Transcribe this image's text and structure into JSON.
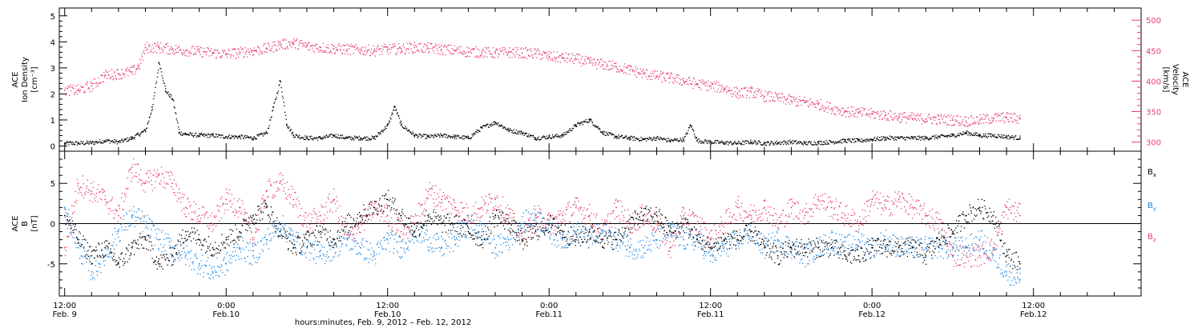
{
  "chart_data": [
    {
      "type": "scatter",
      "panel": "plasma",
      "ylabel": [
        "ACE",
        "Ion Density",
        "[cm⁻³]"
      ],
      "ylabel_right": [
        "ACE",
        "Velocity",
        "[km/s]"
      ],
      "ylim": [
        -0.2,
        5.3
      ],
      "ylim_right": [
        285,
        520
      ],
      "yticks": [
        0,
        1,
        2,
        3,
        4,
        5
      ],
      "yticks_right": [
        300,
        350,
        400,
        450,
        500
      ],
      "grid": false,
      "series": [
        {
          "axis": "left",
          "color": "#000000",
          "x": [
            0,
            1,
            2,
            3,
            4,
            5,
            6,
            6.5,
            7,
            7.5,
            8,
            8.5,
            9,
            10,
            11,
            12,
            13,
            14,
            15,
            15.5,
            16,
            16.5,
            17,
            18,
            19,
            20,
            21,
            22,
            23,
            24,
            24.5,
            25,
            26,
            27,
            28,
            29,
            30,
            31,
            32,
            33,
            34,
            35,
            36,
            37,
            38,
            39,
            40,
            41,
            42,
            43,
            44,
            45,
            46,
            46.5,
            47,
            48,
            49,
            50,
            51,
            52,
            53,
            54,
            55,
            56,
            57,
            58,
            59,
            60,
            61,
            62,
            63,
            64,
            65,
            66,
            67,
            68,
            69,
            70,
            71
          ],
          "values": [
            0.1,
            0.1,
            0.12,
            0.2,
            0.15,
            0.3,
            0.6,
            1.5,
            3.2,
            2.1,
            1.8,
            0.5,
            0.45,
            0.4,
            0.4,
            0.35,
            0.35,
            0.3,
            0.5,
            1.5,
            2.5,
            0.8,
            0.4,
            0.3,
            0.3,
            0.4,
            0.3,
            0.3,
            0.3,
            0.8,
            1.5,
            0.8,
            0.4,
            0.35,
            0.4,
            0.35,
            0.3,
            0.7,
            0.9,
            0.6,
            0.5,
            0.3,
            0.35,
            0.4,
            0.8,
            1.0,
            0.5,
            0.35,
            0.3,
            0.25,
            0.3,
            0.2,
            0.25,
            0.8,
            0.2,
            0.15,
            0.12,
            0.1,
            0.15,
            0.1,
            0.12,
            0.15,
            0.1,
            0.12,
            0.15,
            0.2,
            0.2,
            0.25,
            0.3,
            0.3,
            0.3,
            0.3,
            0.35,
            0.4,
            0.5,
            0.4,
            0.4,
            0.35,
            0.3
          ]
        },
        {
          "axis": "right",
          "color": "#e83e6c",
          "x": [
            0,
            1,
            2,
            3,
            4,
            5,
            5.5,
            6,
            7,
            8,
            9,
            10,
            11,
            12,
            13,
            14,
            15,
            16,
            17,
            18,
            19,
            20,
            21,
            22,
            23,
            24,
            25,
            26,
            27,
            28,
            29,
            30,
            31,
            32,
            33,
            34,
            35,
            36,
            37,
            38,
            39,
            40,
            41,
            42,
            43,
            44,
            45,
            46,
            47,
            48,
            49,
            50,
            51,
            52,
            53,
            54,
            55,
            56,
            57,
            58,
            59,
            60,
            61,
            62,
            63,
            64,
            65,
            66,
            67,
            68,
            69,
            70,
            71
          ],
          "values": [
            385,
            385,
            392,
            410,
            412,
            415,
            425,
            455,
            455,
            452,
            450,
            448,
            446,
            444,
            447,
            450,
            453,
            460,
            462,
            457,
            455,
            453,
            452,
            451,
            450,
            452,
            453,
            455,
            454,
            452,
            450,
            448,
            447,
            446,
            447,
            446,
            445,
            440,
            438,
            436,
            430,
            427,
            423,
            418,
            412,
            408,
            405,
            400,
            395,
            392,
            388,
            380,
            382,
            375,
            372,
            368,
            365,
            362,
            355,
            350,
            348,
            346,
            344,
            341,
            339,
            338,
            337,
            336,
            334,
            336,
            339,
            340,
            338
          ]
        }
      ]
    },
    {
      "type": "scatter",
      "panel": "magnetic-field",
      "ylabel": [
        "ACE",
        "B",
        "[nT]"
      ],
      "ylim": [
        -9,
        9
      ],
      "yticks": [
        -5,
        0,
        5
      ],
      "grid": false,
      "zero_line": true,
      "xlabel": "hours:minutes, Feb.  9, 2012 – Feb. 12, 2012",
      "xlim": [
        -0.4,
        80
      ],
      "xticks": [
        {
          "x": 0,
          "time": "12:00",
          "date": "Feb. 9"
        },
        {
          "x": 12,
          "time": "0:00",
          "date": "Feb.10"
        },
        {
          "x": 24,
          "time": "12:00",
          "date": "Feb.10"
        },
        {
          "x": 36,
          "time": "0:00",
          "date": "Feb.11"
        },
        {
          "x": 48,
          "time": "12:00",
          "date": "Feb.11"
        },
        {
          "x": 60,
          "time": "0:00",
          "date": "Feb.12"
        },
        {
          "x": 72,
          "time": "12:00",
          "date": "Feb.12"
        }
      ],
      "legend_labels": [
        {
          "base": "B",
          "sub": "x",
          "color": "#000000"
        },
        {
          "base": "B",
          "sub": "y",
          "color": "#1e88e5"
        },
        {
          "base": "B",
          "sub": "z",
          "color": "#e83e6c"
        }
      ],
      "legend_placement": "right",
      "series": [
        {
          "color": "#000000",
          "x": [
            0,
            1,
            2,
            3,
            4,
            5,
            6,
            7,
            8,
            9,
            10,
            11,
            12,
            13,
            14,
            15,
            16,
            17,
            18,
            19,
            20,
            21,
            22,
            23,
            24,
            25,
            26,
            27,
            28,
            29,
            30,
            31,
            32,
            33,
            34,
            35,
            36,
            37,
            38,
            39,
            40,
            41,
            42,
            43,
            44,
            45,
            46,
            47,
            48,
            49,
            50,
            51,
            52,
            53,
            54,
            55,
            56,
            57,
            58,
            59,
            60,
            61,
            62,
            63,
            64,
            65,
            66,
            67,
            68,
            69,
            70,
            71
          ],
          "values": [
            1,
            -2,
            -4,
            -3,
            -5,
            -3,
            -2,
            -5,
            -4,
            -1,
            -2,
            -3,
            -2,
            -1,
            1,
            2,
            -1,
            -3,
            -2,
            -1,
            -2,
            0,
            1,
            2,
            3,
            1,
            -1,
            1,
            0,
            0,
            -1,
            -2,
            1,
            0,
            -2,
            -1,
            0,
            -1,
            -2,
            -1,
            -2,
            -2,
            0,
            1,
            1,
            -1,
            0,
            -2,
            -3,
            -2,
            -2,
            -1,
            -3,
            -4,
            -3,
            -3,
            -3,
            -3,
            -4,
            -4,
            -3,
            -3,
            -3,
            -3,
            -4,
            -2,
            -1,
            1,
            2,
            1,
            -4,
            -5
          ]
        },
        {
          "color": "#1e88e5",
          "x": [
            0,
            1,
            2,
            3,
            4,
            5,
            6,
            7,
            8,
            9,
            10,
            11,
            12,
            13,
            14,
            15,
            16,
            17,
            18,
            19,
            20,
            21,
            22,
            23,
            24,
            25,
            26,
            27,
            28,
            29,
            30,
            31,
            32,
            33,
            34,
            35,
            36,
            37,
            38,
            39,
            40,
            41,
            42,
            43,
            44,
            45,
            46,
            47,
            48,
            49,
            50,
            51,
            52,
            53,
            54,
            55,
            56,
            57,
            58,
            59,
            60,
            61,
            62,
            63,
            64,
            65,
            66,
            67,
            68,
            69,
            70,
            71
          ],
          "values": [
            2,
            -3,
            -6,
            -4,
            -1,
            1,
            0,
            -2,
            -3,
            -4,
            -5,
            -6,
            -5,
            -3,
            -4,
            -2,
            0,
            -2,
            -3,
            -4,
            -3,
            -2,
            -3,
            -4,
            -2,
            -3,
            -1,
            -2,
            -3,
            -2,
            0,
            -1,
            -3,
            -2,
            0,
            1,
            -1,
            -2,
            -1,
            -2,
            -1,
            -2,
            -3,
            -3,
            -2,
            -1,
            -2,
            -2,
            -4,
            -3,
            -2,
            -1,
            -3,
            -2,
            -3,
            -4,
            -3,
            -2,
            -3,
            -2,
            -3,
            -2,
            -3,
            -3,
            -3,
            -3,
            -3,
            -3,
            -2,
            -4,
            -6,
            -7
          ]
        },
        {
          "color": "#e83e6c",
          "x": [
            0,
            1,
            2,
            3,
            4,
            5,
            6,
            7,
            8,
            9,
            10,
            11,
            12,
            13,
            14,
            15,
            16,
            17,
            18,
            19,
            20,
            21,
            22,
            23,
            24,
            25,
            26,
            27,
            28,
            29,
            30,
            31,
            32,
            33,
            34,
            35,
            36,
            37,
            38,
            39,
            40,
            41,
            42,
            43,
            44,
            45,
            46,
            47,
            48,
            49,
            50,
            51,
            52,
            53,
            54,
            55,
            56,
            57,
            58,
            59,
            60,
            61,
            62,
            63,
            64,
            65,
            66,
            67,
            68,
            69,
            70,
            71
          ],
          "values": [
            -3,
            5,
            4,
            3,
            1,
            7,
            5,
            6,
            5,
            2,
            1,
            0,
            3,
            2,
            -2,
            4,
            5,
            3,
            0,
            1,
            3,
            -2,
            0,
            2,
            1,
            -1,
            0,
            4,
            3,
            2,
            1,
            2,
            3,
            1,
            -2,
            1,
            0,
            1,
            2,
            1,
            -1,
            2,
            0,
            1,
            0,
            -3,
            1,
            0,
            -2,
            0,
            2,
            1,
            2,
            0,
            2,
            1,
            3,
            2,
            1,
            0,
            3,
            2,
            3,
            2,
            1,
            0,
            -4,
            -4,
            -4,
            -3,
            2,
            1
          ]
        }
      ]
    }
  ]
}
